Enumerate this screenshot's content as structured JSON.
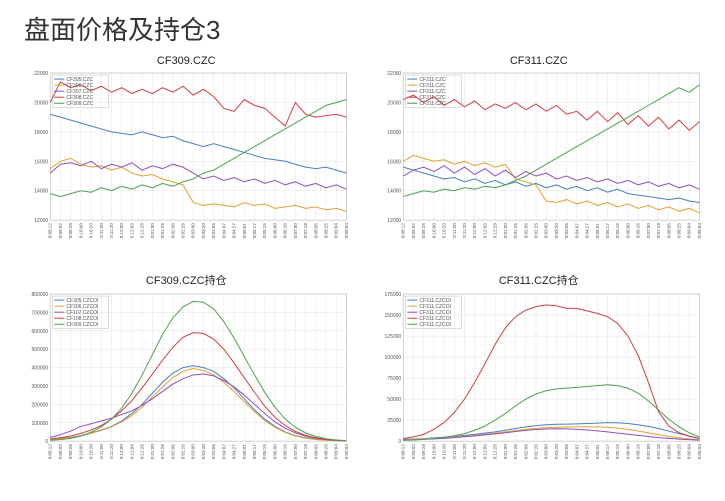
{
  "page_title": "盘面价格及持仓3",
  "layout": {
    "rows": 2,
    "cols": 2
  },
  "common": {
    "background": "#ffffff",
    "grid_color": "#cccccc",
    "axis_color": "#888888",
    "title_fontsize": 11,
    "tick_fontsize": 5,
    "line_width": 1
  },
  "x_labels_price": [
    "0:08:12",
    "0:09:02",
    "0:09:28",
    "0:10:00",
    "0:10:20",
    "0:11:00",
    "0:11:20",
    "0:12:00",
    "0:12:09",
    "0:12:28",
    "0:01:00",
    "0:01:26",
    "0:02:06",
    "0:02:26",
    "0:03:00",
    "0:03:20",
    "0:03:06",
    "0:04:07",
    "0:04:27",
    "0:05:01",
    "0:05:17",
    "0:05:19",
    "0:06:00",
    "0:06:16",
    "0:07:00",
    "0:07:18",
    "0:08:05",
    "0:08:25",
    "0:09:04",
    "0:09:04"
  ],
  "x_labels_pos": [
    "0:08:12",
    "0:09:02",
    "0:09:28",
    "0:10:00",
    "0:10:20",
    "0:11:00",
    "0:11:20",
    "0:12:00",
    "0:12:09",
    "0:12:28",
    "0:01:00",
    "0:01:26",
    "0:02:06",
    "0:02:26",
    "0:03:00",
    "0:03:20",
    "0:03:06",
    "0:04:07",
    "0:04:27",
    "0:05:01",
    "0:05:17",
    "0:05:19",
    "0:06:00",
    "0:06:16",
    "0:07:00",
    "0:07:18",
    "0:08:05",
    "0:08:25",
    "0:09:04",
    "0:09:04"
  ],
  "charts": [
    {
      "id": "cf309-price",
      "title": "CF309.CZC",
      "type": "line",
      "ylim": [
        12000,
        22000
      ],
      "ytick_step": 2000,
      "legend": [
        "CF305.CZC",
        "CF306.CZC",
        "CF307.CZC",
        "CF308.CZC",
        "CF309.CZC"
      ],
      "colors": [
        "#4a7fc4",
        "#e0a030",
        "#9050c0",
        "#d04040",
        "#50a050"
      ],
      "series": [
        [
          19200,
          19000,
          18800,
          18600,
          18400,
          18200,
          18000,
          17900,
          17800,
          18000,
          17800,
          17600,
          17700,
          17400,
          17200,
          17000,
          17200,
          17000,
          16800,
          16600,
          16400,
          16200,
          16100,
          16000,
          15800,
          15600,
          15500,
          15600,
          15400,
          15200
        ],
        [
          15500,
          16000,
          16200,
          15800,
          15600,
          15700,
          15400,
          15600,
          15200,
          15000,
          15100,
          14800,
          14600,
          14400,
          13200,
          13000,
          13100,
          13000,
          12900,
          13200,
          13000,
          13100,
          12800,
          12900,
          13000,
          12800,
          12900,
          12700,
          12800,
          12600
        ],
        [
          15200,
          15800,
          15900,
          15700,
          16000,
          15500,
          15800,
          15600,
          15900,
          15400,
          15700,
          15500,
          15800,
          15600,
          15200,
          14800,
          15000,
          14700,
          14900,
          14600,
          14800,
          14500,
          14700,
          14400,
          14600,
          14300,
          14500,
          14200,
          14400,
          14100
        ],
        [
          20000,
          21400,
          21000,
          21200,
          20800,
          21100,
          20700,
          21000,
          20600,
          20900,
          20600,
          21000,
          20700,
          21100,
          20500,
          20900,
          20400,
          19600,
          19400,
          20200,
          19800,
          19600,
          19000,
          18400,
          20000,
          19200,
          19000,
          19100,
          19200,
          19000
        ],
        [
          13800,
          13600,
          13800,
          14000,
          13900,
          14200,
          14000,
          14300,
          14100,
          14400,
          14200,
          14500,
          14300,
          14600,
          14800,
          15200,
          15400,
          15800,
          16200,
          16600,
          17000,
          17400,
          17800,
          18200,
          18600,
          19000,
          19400,
          19800,
          20000,
          20200
        ]
      ]
    },
    {
      "id": "cf311-price",
      "title": "CF311.CZC",
      "type": "line",
      "ylim": [
        12000,
        22000
      ],
      "ytick_step": 2000,
      "legend": [
        "CF311.CZC",
        "CF311.CZC",
        "CF311.CZC",
        "CF311.CZC",
        "CF311.CZC"
      ],
      "colors": [
        "#4a7fc4",
        "#e0a030",
        "#9050c0",
        "#d04040",
        "#50a050"
      ],
      "series": [
        [
          15600,
          15400,
          15200,
          15000,
          14800,
          14900,
          14600,
          14800,
          14500,
          14700,
          14400,
          14600,
          14300,
          14500,
          14200,
          14400,
          14100,
          14300,
          14000,
          14200,
          13900,
          14100,
          13800,
          13700,
          13600,
          13500,
          13400,
          13500,
          13300,
          13200
        ],
        [
          16000,
          16400,
          16200,
          16000,
          16100,
          15800,
          16000,
          15700,
          15900,
          15600,
          15800,
          14800,
          14600,
          14400,
          13300,
          13200,
          13400,
          13100,
          13300,
          13000,
          13200,
          12900,
          13100,
          12800,
          13000,
          12700,
          12900,
          12600,
          12800,
          12500
        ],
        [
          15000,
          15400,
          15600,
          15300,
          15700,
          15200,
          15600,
          15100,
          15500,
          15000,
          15400,
          14900,
          15300,
          15000,
          15200,
          14800,
          15000,
          14700,
          14900,
          14600,
          14800,
          14500,
          14700,
          14400,
          14600,
          14300,
          14500,
          14200,
          14400,
          14100
        ],
        [
          20200,
          20500,
          20000,
          20400,
          19800,
          20200,
          19700,
          20100,
          19500,
          19900,
          19600,
          20000,
          19500,
          19900,
          19400,
          19800,
          19200,
          19400,
          18800,
          19400,
          18700,
          19300,
          18500,
          19100,
          18400,
          19000,
          18200,
          18800,
          18100,
          18700
        ],
        [
          13600,
          13800,
          14000,
          13900,
          14100,
          14000,
          14200,
          14100,
          14300,
          14200,
          14400,
          14700,
          15000,
          15400,
          15800,
          16200,
          16600,
          17000,
          17400,
          17800,
          18200,
          18600,
          19000,
          19400,
          19800,
          20200,
          20600,
          21000,
          20700,
          21200
        ]
      ]
    },
    {
      "id": "cf309-position",
      "title": "CF309.CZC持仓",
      "type": "line",
      "ylim": [
        0,
        800000
      ],
      "ytick_step": 100000,
      "legend": [
        "CF305.CZCOI",
        "CF306.CZCOI",
        "CF107.CZCOI",
        "CF108.CZCOI",
        "CF309.CZCOI"
      ],
      "colors": [
        "#4a7fc4",
        "#e0a030",
        "#9050c0",
        "#d04040",
        "#50a050"
      ],
      "series": [
        [
          10000,
          15000,
          20000,
          30000,
          45000,
          60000,
          80000,
          110000,
          150000,
          200000,
          260000,
          320000,
          370000,
          400000,
          410000,
          400000,
          380000,
          340000,
          290000,
          230000,
          170000,
          120000,
          80000,
          50000,
          30000,
          18000,
          10000,
          6000,
          3000,
          1000
        ],
        [
          8000,
          12000,
          18000,
          28000,
          42000,
          58000,
          78000,
          105000,
          140000,
          185000,
          240000,
          295000,
          345000,
          380000,
          395000,
          385000,
          360000,
          320000,
          270000,
          215000,
          160000,
          112000,
          75000,
          47000,
          28000,
          16000,
          9000,
          5000,
          2500,
          800
        ],
        [
          20000,
          35000,
          55000,
          80000,
          95000,
          110000,
          125000,
          145000,
          165000,
          195000,
          230000,
          270000,
          310000,
          340000,
          360000,
          365000,
          355000,
          330000,
          295000,
          250000,
          200000,
          150000,
          105000,
          70000,
          45000,
          27000,
          15000,
          8000,
          4000,
          1500
        ],
        [
          12000,
          18000,
          28000,
          42000,
          60000,
          85000,
          120000,
          165000,
          220000,
          290000,
          365000,
          440000,
          510000,
          565000,
          590000,
          585000,
          555000,
          500000,
          425000,
          345000,
          265000,
          190000,
          130000,
          85000,
          53000,
          32000,
          18000,
          10000,
          5000,
          2000
        ],
        [
          5000,
          8000,
          15000,
          28000,
          48000,
          78000,
          120000,
          180000,
          260000,
          360000,
          470000,
          580000,
          670000,
          730000,
          760000,
          755000,
          720000,
          650000,
          560000,
          460000,
          360000,
          265000,
          185000,
          120000,
          75000,
          45000,
          25000,
          13000,
          6000,
          2500
        ]
      ]
    },
    {
      "id": "cf311-position",
      "title": "CF311.CZC持仓",
      "type": "line",
      "ylim": [
        0,
        175000
      ],
      "ytick_step": 25000,
      "legend": [
        "CF311.CZCOI",
        "CF311.CZCOI",
        "CF311.CZCOI",
        "CF311.CZCOI",
        "CF311.CZCOI"
      ],
      "colors": [
        "#4a7fc4",
        "#e0a030",
        "#9050c0",
        "#d04040",
        "#50a050"
      ],
      "series": [
        [
          2000,
          2500,
          3000,
          3800,
          4500,
          5500,
          6800,
          8000,
          9500,
          11000,
          13000,
          15000,
          17000,
          18500,
          19500,
          20000,
          20200,
          20500,
          21000,
          21500,
          22000,
          21800,
          21000,
          19500,
          17500,
          15000,
          12000,
          9000,
          6000,
          3500
        ],
        [
          1500,
          2000,
          2600,
          3200,
          4000,
          4800,
          5800,
          7000,
          8200,
          9500,
          11000,
          12500,
          14000,
          15200,
          16000,
          16500,
          16800,
          17000,
          17200,
          17000,
          16500,
          15500,
          14000,
          12000,
          9800,
          7500,
          5500,
          3800,
          2500,
          1500
        ],
        [
          1200,
          1600,
          2100,
          2700,
          3400,
          4200,
          5200,
          6200,
          7400,
          8600,
          10000,
          11400,
          12800,
          13800,
          14500,
          14800,
          14600,
          14000,
          13200,
          12200,
          11000,
          9600,
          8200,
          6800,
          5500,
          4200,
          3200,
          2400,
          1800,
          1200
        ],
        [
          3000,
          5000,
          8000,
          14000,
          22000,
          34000,
          50000,
          70000,
          92000,
          115000,
          135000,
          148000,
          156000,
          160000,
          162000,
          161000,
          158000,
          158000,
          155000,
          152000,
          148000,
          140000,
          125000,
          102000,
          70000,
          35000,
          18000,
          10000,
          6000,
          3000
        ],
        [
          1000,
          1500,
          2200,
          3200,
          4500,
          6500,
          9000,
          13000,
          18000,
          25000,
          33000,
          42000,
          50000,
          56000,
          60000,
          62000,
          63000,
          64000,
          65000,
          66000,
          67000,
          66000,
          63000,
          57000,
          48000,
          37000,
          26000,
          17000,
          10000,
          5000
        ]
      ]
    }
  ]
}
